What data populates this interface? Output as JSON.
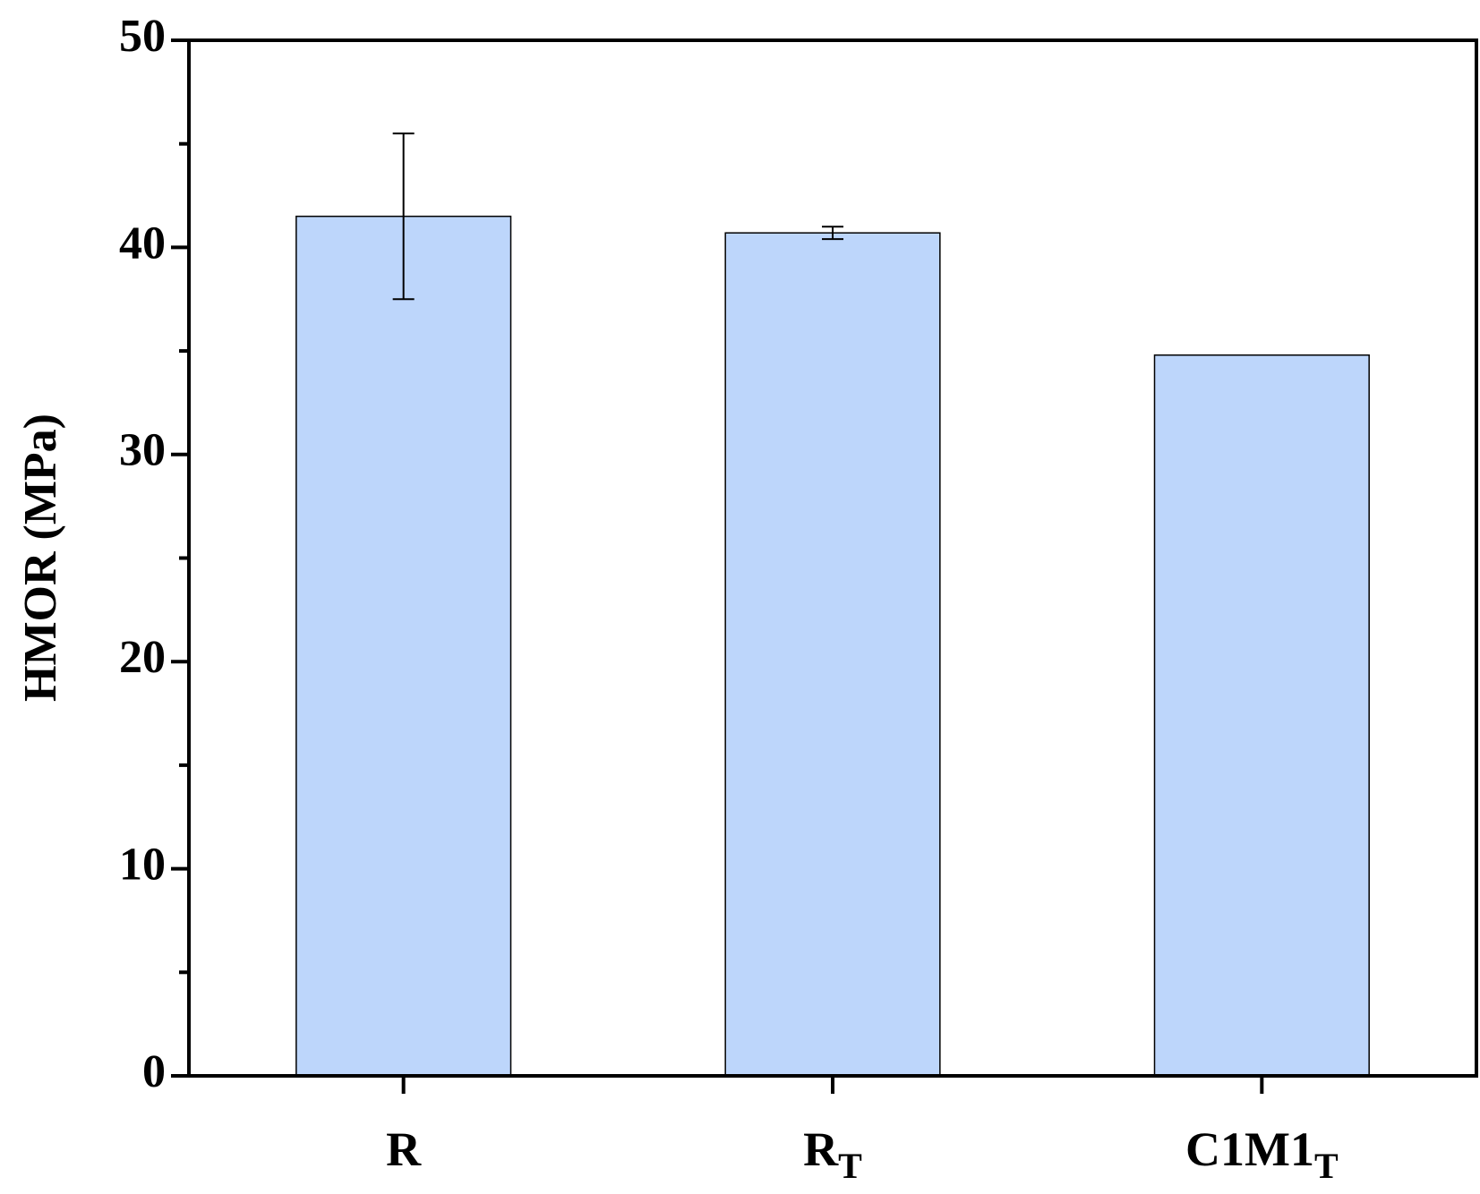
{
  "chart_data": {
    "type": "bar",
    "y_label": "HMOR (MPa)",
    "categories": [
      "R",
      "R",
      "C1M1"
    ],
    "category_subscripts": [
      null,
      "T",
      "T"
    ],
    "values": [
      41.5,
      40.7,
      34.8
    ],
    "errors": [
      4.0,
      0.3,
      null
    ],
    "color": "#bdd6fb",
    "ylim": [
      0,
      50
    ],
    "yticks": [
      0,
      10,
      20,
      30,
      40,
      50
    ],
    "yminorticks": [
      5,
      15,
      25,
      35,
      45
    ],
    "grid": false
  }
}
